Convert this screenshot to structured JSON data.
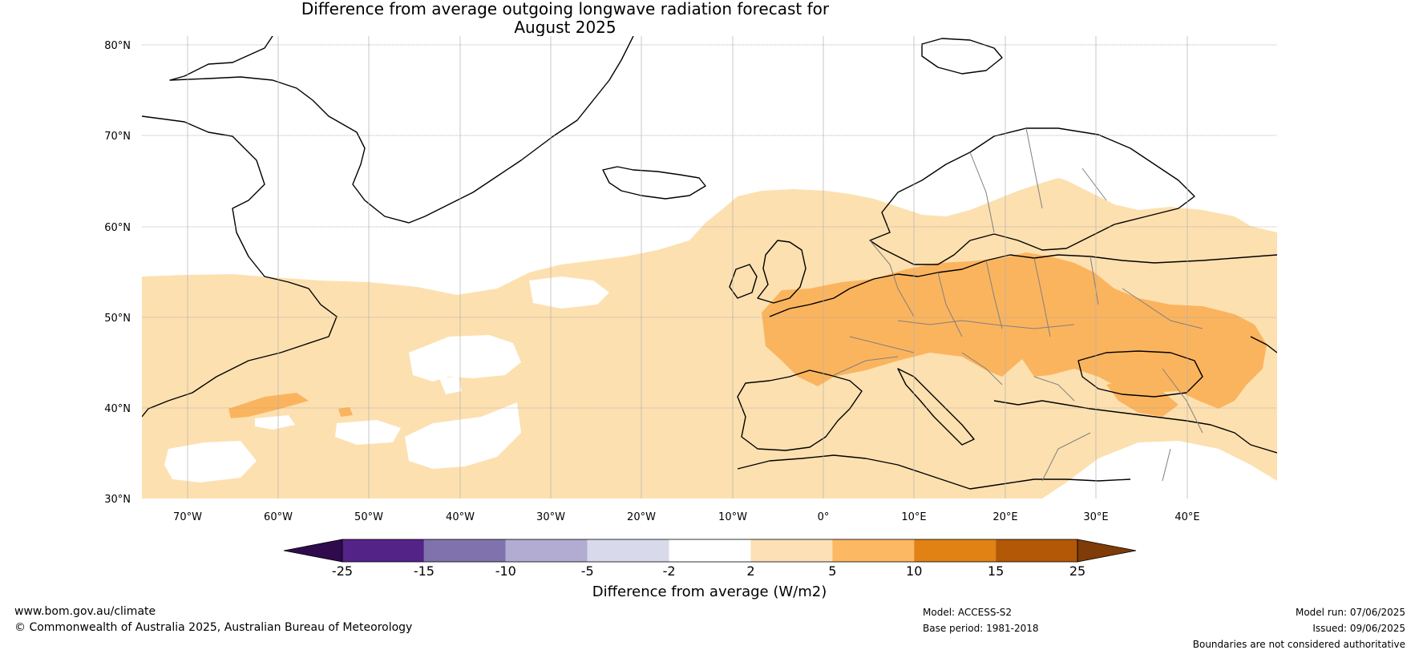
{
  "title": {
    "line1": "Difference from average outgoing longwave radiation forecast for",
    "line2": "August 2025"
  },
  "map": {
    "lat_labels": [
      "80°N",
      "70°N",
      "60°N",
      "50°N",
      "40°N",
      "30°N"
    ],
    "lon_labels": [
      "70°W",
      "60°W",
      "50°W",
      "40°W",
      "30°W",
      "20°W",
      "10°W",
      "0°",
      "10°E",
      "20°E",
      "30°E",
      "40°E"
    ],
    "colors": {
      "ocean_white": "#ffffff",
      "light_orange": "#fde0b0",
      "mid_orange": "#fbb45e",
      "coastline": "#000000",
      "borders": "#808080",
      "gridlines": "#b0b0b0"
    }
  },
  "colorbar": {
    "ticks": [
      "-25",
      "-15",
      "-10",
      "-5",
      "-2",
      "2",
      "5",
      "10",
      "15",
      "25"
    ],
    "colors": [
      "#2f0b4d",
      "#542388",
      "#8073ad",
      "#b2abd2",
      "#d8daeb",
      "#ffffff",
      "#fde0b6",
      "#fdb863",
      "#e08214",
      "#b35806",
      "#7f3b08"
    ],
    "label": "Difference from average (W/m2)"
  },
  "footer": {
    "website": "www.bom.gov.au/climate",
    "copyright": "© Commonwealth of Australia 2025, Australian Bureau of Meteorology",
    "model": "Model: ACCESS-S2",
    "base_period": "Base period: 1981-2018",
    "model_run": "Model run: 07/06/2025",
    "issued": "Issued: 09/06/2025",
    "disclaimer": "Boundaries are not considered authoritative"
  }
}
